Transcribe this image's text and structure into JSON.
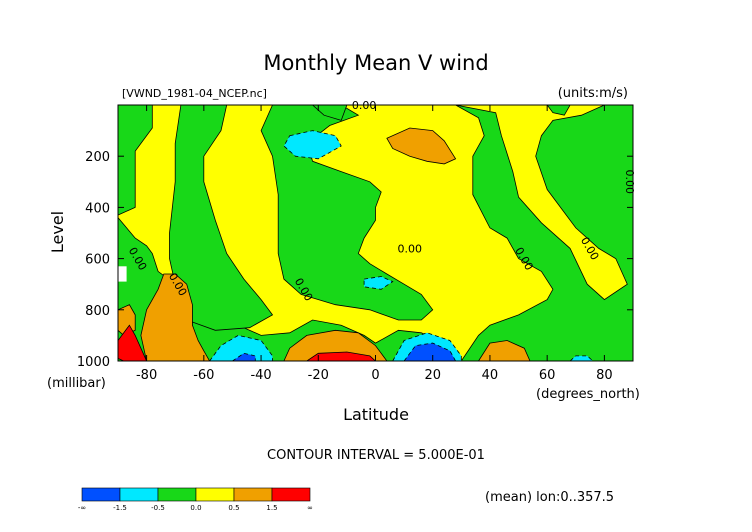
{
  "chart_data": {
    "type": "heatmap",
    "title": "Monthly Mean V wind",
    "subtitle_left": "[VWND_1981-04_NCEP.nc]",
    "subtitle_right": "(units:m/s)",
    "xlabel": "Latitude",
    "x_unit": "(degrees_north)",
    "ylabel": "Level",
    "y_unit": "(millibar)",
    "xlim": [
      -90,
      90
    ],
    "ylim": [
      1000,
      0
    ],
    "xticks": [
      -80,
      -60,
      -40,
      -20,
      0,
      20,
      40,
      60,
      80
    ],
    "yticks": [
      200,
      400,
      600,
      800,
      1000
    ],
    "contour_interval_text": "CONTOUR INTERVAL = 5.000E-01",
    "footnote": "(mean) lon:0..357.5",
    "contour_labels": [
      {
        "text": "0.00",
        "lat": -4,
        "level": 0
      },
      {
        "text": "0.00",
        "lat": -83,
        "level": 600
      },
      {
        "text": "0.00",
        "lat": -69,
        "level": 700
      },
      {
        "text": "0.00",
        "lat": -25,
        "level": 720
      },
      {
        "text": "0.00",
        "lat": 12,
        "level": 560
      },
      {
        "text": "0.00",
        "lat": 52,
        "level": 600
      },
      {
        "text": "0.00",
        "lat": 75,
        "level": 560
      },
      {
        "text": "0.00",
        "lat": 89,
        "level": 300
      }
    ],
    "colorbar": {
      "ticks": [
        "-∞",
        "-1.5",
        "-0.5",
        "0.0",
        "0.5",
        "1.5",
        "∞"
      ],
      "colors": [
        "#0050ff",
        "#00e8ff",
        "#18d818",
        "#ffff00",
        "#f0a000",
        "#ff0000"
      ]
    },
    "regions": [
      {
        "value": 0.25,
        "level": "yellow",
        "outline": [
          [
            -90,
            0
          ],
          [
            90,
            0
          ],
          [
            90,
            1000
          ],
          [
            -90,
            1000
          ]
        ]
      },
      {
        "value": -0.25,
        "level": "green",
        "outline": [
          [
            -90,
            0
          ],
          [
            -78,
            0
          ],
          [
            -78,
            90
          ],
          [
            -84,
            180
          ],
          [
            -84,
            400
          ],
          [
            -90,
            430
          ]
        ]
      },
      {
        "value": -0.25,
        "level": "green",
        "outline": [
          [
            -90,
            440
          ],
          [
            -84,
            520
          ],
          [
            -80,
            550
          ],
          [
            -78,
            580
          ],
          [
            -76,
            650
          ],
          [
            -70,
            700
          ],
          [
            -64,
            760
          ],
          [
            -60,
            830
          ],
          [
            -48,
            860
          ],
          [
            -40,
            900
          ],
          [
            -30,
            890
          ],
          [
            -22,
            840
          ],
          [
            -12,
            860
          ],
          [
            -4,
            900
          ],
          [
            0,
            930
          ],
          [
            8,
            880
          ],
          [
            16,
            890
          ],
          [
            24,
            930
          ],
          [
            30,
            1000
          ],
          [
            -90,
            1000
          ]
        ]
      },
      {
        "value": -0.25,
        "level": "green",
        "outline": [
          [
            -68,
            0
          ],
          [
            -52,
            0
          ],
          [
            -54,
            100
          ],
          [
            -60,
            200
          ],
          [
            -60,
            300
          ],
          [
            -56,
            450
          ],
          [
            -52,
            580
          ],
          [
            -46,
            680
          ],
          [
            -40,
            760
          ],
          [
            -36,
            820
          ],
          [
            -44,
            870
          ],
          [
            -56,
            880
          ],
          [
            -66,
            840
          ],
          [
            -70,
            700
          ],
          [
            -72,
            600
          ],
          [
            -72,
            500
          ],
          [
            -70,
            300
          ],
          [
            -70,
            150
          ]
        ]
      },
      {
        "value": -0.25,
        "level": "green",
        "outline": [
          [
            -36,
            0
          ],
          [
            -12,
            0
          ],
          [
            -6,
            40
          ],
          [
            -16,
            80
          ],
          [
            -24,
            150
          ],
          [
            -22,
            220
          ],
          [
            -12,
            260
          ],
          [
            -2,
            300
          ],
          [
            2,
            340
          ],
          [
            0,
            400
          ],
          [
            0,
            450
          ],
          [
            -4,
            520
          ],
          [
            -6,
            580
          ],
          [
            -2,
            620
          ],
          [
            4,
            660
          ],
          [
            10,
            700
          ],
          [
            16,
            740
          ],
          [
            20,
            800
          ],
          [
            16,
            840
          ],
          [
            8,
            840
          ],
          [
            -2,
            800
          ],
          [
            -14,
            780
          ],
          [
            -26,
            740
          ],
          [
            -32,
            680
          ],
          [
            -34,
            580
          ],
          [
            -34,
            480
          ],
          [
            -34,
            350
          ],
          [
            -36,
            200
          ],
          [
            -40,
            100
          ]
        ]
      },
      {
        "value": -0.25,
        "level": "green",
        "outline": [
          [
            -22,
            0
          ],
          [
            -10,
            0
          ],
          [
            -12,
            60
          ],
          [
            -18,
            40
          ]
        ]
      },
      {
        "value": -0.25,
        "level": "green",
        "outline": [
          [
            28,
            0
          ],
          [
            36,
            50
          ],
          [
            38,
            120
          ],
          [
            34,
            200
          ],
          [
            34,
            350
          ],
          [
            40,
            480
          ],
          [
            46,
            520
          ],
          [
            50,
            600
          ],
          [
            58,
            650
          ],
          [
            62,
            720
          ],
          [
            60,
            760
          ],
          [
            50,
            820
          ],
          [
            40,
            860
          ],
          [
            36,
            900
          ],
          [
            30,
            1000
          ],
          [
            90,
            1000
          ],
          [
            90,
            0
          ],
          [
            80,
            0
          ],
          [
            72,
            40
          ],
          [
            62,
            60
          ],
          [
            58,
            120
          ],
          [
            56,
            200
          ],
          [
            60,
            330
          ],
          [
            70,
            480
          ],
          [
            78,
            560
          ],
          [
            84,
            600
          ],
          [
            88,
            700
          ],
          [
            80,
            760
          ],
          [
            74,
            700
          ],
          [
            68,
            560
          ],
          [
            58,
            460
          ],
          [
            50,
            360
          ],
          [
            48,
            260
          ],
          [
            44,
            120
          ],
          [
            42,
            30
          ]
        ]
      },
      {
        "value": -0.25,
        "level": "green",
        "outline": [
          [
            60,
            0
          ],
          [
            68,
            0
          ],
          [
            66,
            40
          ],
          [
            62,
            30
          ]
        ]
      },
      {
        "value": -0.75,
        "level": "cyan",
        "outline": [
          [
            -30,
            120
          ],
          [
            -22,
            100
          ],
          [
            -14,
            120
          ],
          [
            -12,
            160
          ],
          [
            -20,
            210
          ],
          [
            -28,
            200
          ],
          [
            -32,
            160
          ]
        ]
      },
      {
        "value": -0.75,
        "level": "cyan",
        "outline": [
          [
            -4,
            680
          ],
          [
            2,
            670
          ],
          [
            6,
            690
          ],
          [
            2,
            720
          ],
          [
            -4,
            710
          ]
        ]
      },
      {
        "value": -0.75,
        "level": "cyan",
        "outline": [
          [
            -58,
            1000
          ],
          [
            -54,
            940
          ],
          [
            -48,
            900
          ],
          [
            -40,
            920
          ],
          [
            -36,
            980
          ],
          [
            -36,
            1000
          ]
        ]
      },
      {
        "value": -0.75,
        "level": "cyan",
        "outline": [
          [
            6,
            1000
          ],
          [
            10,
            920
          ],
          [
            18,
            890
          ],
          [
            26,
            920
          ],
          [
            30,
            980
          ],
          [
            30,
            1000
          ]
        ]
      },
      {
        "value": -0.75,
        "level": "cyan",
        "outline": [
          [
            20,
            180
          ],
          [
            22,
            180
          ],
          [
            22,
            200
          ],
          [
            20,
            200
          ]
        ]
      },
      {
        "value": -0.75,
        "level": "cyan",
        "outline": [
          [
            68,
            1000
          ],
          [
            70,
            980
          ],
          [
            74,
            980
          ],
          [
            76,
            1000
          ]
        ]
      },
      {
        "value": -1.75,
        "level": "blue",
        "outline": [
          [
            -50,
            1000
          ],
          [
            -46,
            970
          ],
          [
            -42,
            980
          ],
          [
            -42,
            1000
          ]
        ]
      },
      {
        "value": -1.75,
        "level": "blue",
        "outline": [
          [
            10,
            1000
          ],
          [
            14,
            940
          ],
          [
            20,
            930
          ],
          [
            26,
            960
          ],
          [
            28,
            1000
          ]
        ]
      },
      {
        "value": 0.75,
        "level": "orange",
        "outline": [
          [
            4,
            130
          ],
          [
            12,
            90
          ],
          [
            20,
            100
          ],
          [
            24,
            140
          ],
          [
            28,
            210
          ],
          [
            24,
            230
          ],
          [
            18,
            220
          ],
          [
            12,
            200
          ],
          [
            6,
            170
          ]
        ]
      },
      {
        "value": 0.75,
        "level": "orange",
        "outline": [
          [
            -80,
            1000
          ],
          [
            -82,
            900
          ],
          [
            -80,
            800
          ],
          [
            -76,
            720
          ],
          [
            -74,
            660
          ],
          [
            -70,
            660
          ],
          [
            -66,
            700
          ],
          [
            -64,
            780
          ],
          [
            -64,
            860
          ],
          [
            -62,
            920
          ],
          [
            -60,
            960
          ],
          [
            -58,
            1000
          ]
        ]
      },
      {
        "value": 0.75,
        "level": "orange",
        "outline": [
          [
            -90,
            800
          ],
          [
            -86,
            780
          ],
          [
            -84,
            820
          ],
          [
            -84,
            880
          ],
          [
            -88,
            900
          ],
          [
            -90,
            880
          ]
        ]
      },
      {
        "value": 0.75,
        "level": "orange",
        "outline": [
          [
            -32,
            1000
          ],
          [
            -30,
            950
          ],
          [
            -24,
            900
          ],
          [
            -14,
            880
          ],
          [
            -6,
            890
          ],
          [
            0,
            940
          ],
          [
            4,
            1000
          ]
        ]
      },
      {
        "value": 0.75,
        "level": "orange",
        "outline": [
          [
            36,
            1000
          ],
          [
            40,
            930
          ],
          [
            46,
            920
          ],
          [
            52,
            950
          ],
          [
            54,
            1000
          ]
        ]
      },
      {
        "value": 1.75,
        "level": "red",
        "outline": [
          [
            -88,
            1000
          ],
          [
            -90,
            990
          ],
          [
            -90,
            920
          ],
          [
            -86,
            860
          ],
          [
            -84,
            900
          ],
          [
            -82,
            950
          ],
          [
            -80,
            1000
          ]
        ]
      },
      {
        "value": 1.75,
        "level": "red",
        "outline": [
          [
            -24,
            1000
          ],
          [
            -20,
            970
          ],
          [
            -10,
            965
          ],
          [
            -2,
            980
          ],
          [
            0,
            1000
          ]
        ]
      },
      {
        "value": 0.0,
        "level": "white",
        "outline": [
          [
            -90,
            630
          ],
          [
            -87,
            630
          ],
          [
            -87,
            690
          ],
          [
            -90,
            690
          ]
        ]
      }
    ]
  }
}
